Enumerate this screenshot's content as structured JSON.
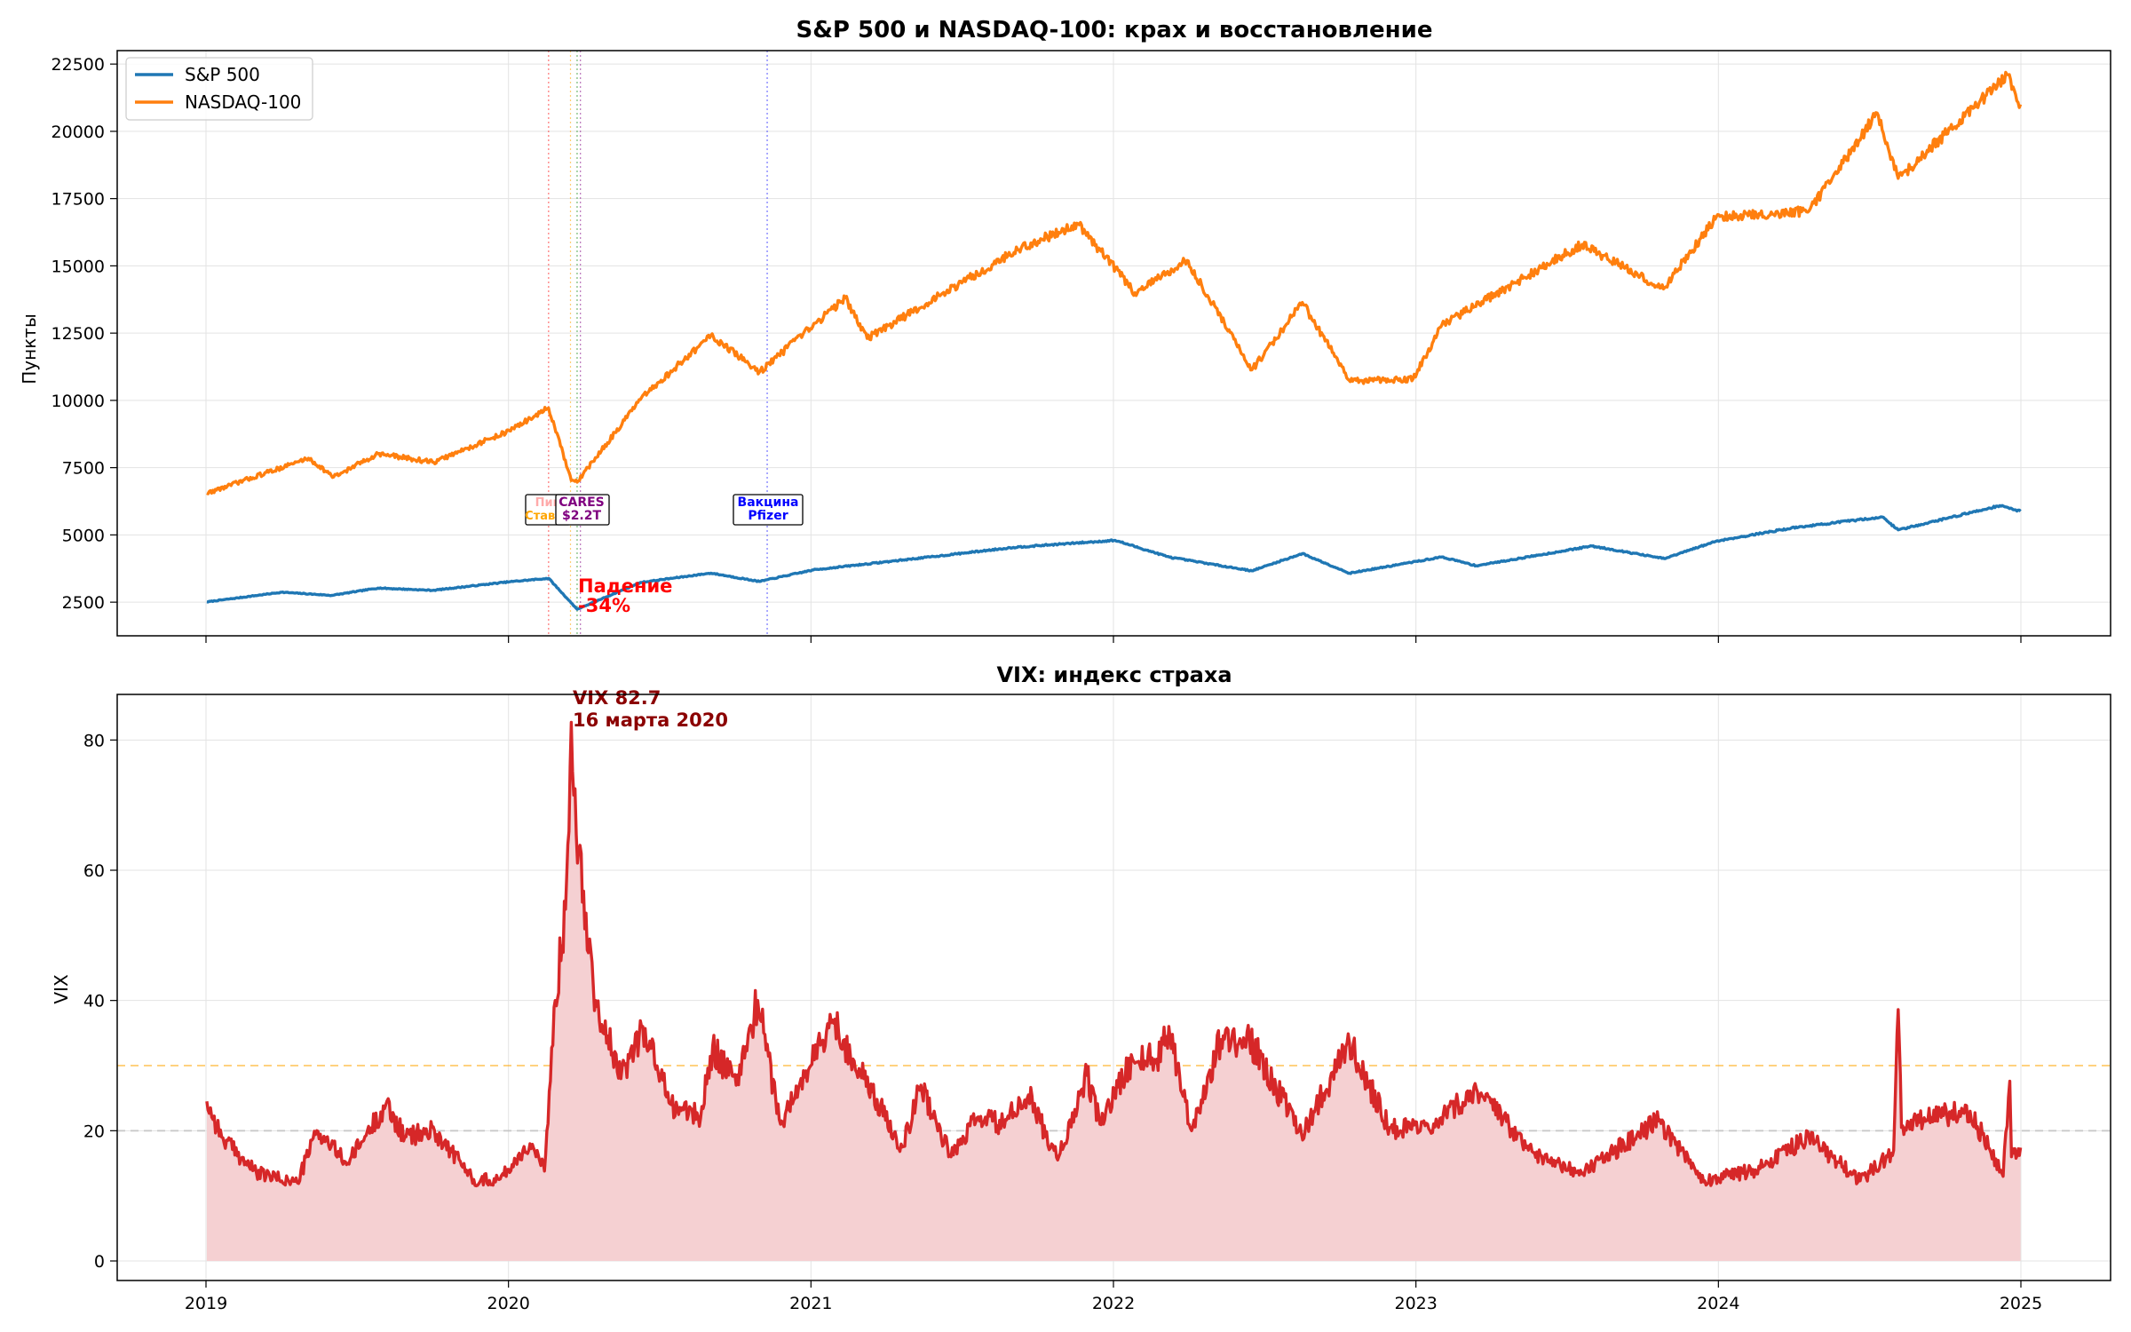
{
  "chart_data": [
    {
      "type": "line",
      "title": "S&P 500 и NASDAQ-100: крах и восстановление",
      "xlabel": "",
      "ylabel": "Пункты",
      "ylim": [
        1250,
        23000
      ],
      "yticks": [
        2500,
        5000,
        7500,
        10000,
        12500,
        15000,
        17500,
        20000,
        22500
      ],
      "xticks": [
        "2019",
        "2020",
        "2021",
        "2022",
        "2023",
        "2024",
        "2025"
      ],
      "grid": true,
      "legend": "top-left",
      "series": [
        {
          "name": "S&P 500",
          "color": "#1f77b4",
          "x": [
            "2019-01-02",
            "2019-04-01",
            "2019-05-31",
            "2019-07-26",
            "2019-10-01",
            "2020-01-02",
            "2020-02-19",
            "2020-03-23",
            "2020-06-08",
            "2020-09-02",
            "2020-10-30",
            "2021-01-04",
            "2021-06-01",
            "2021-09-02",
            "2022-01-03",
            "2022-03-08",
            "2022-06-16",
            "2022-08-16",
            "2022-10-12",
            "2023-02-02",
            "2023-03-13",
            "2023-07-31",
            "2023-10-27",
            "2023-12-29",
            "2024-03-28",
            "2024-07-16",
            "2024-08-05",
            "2024-12-06",
            "2024-12-31"
          ],
          "values": [
            2510,
            2870,
            2752,
            3025,
            2940,
            3258,
            3386,
            2237,
            3232,
            3580,
            3270,
            3700,
            4210,
            4537,
            4797,
            4170,
            3667,
            4305,
            3577,
            4180,
            3855,
            4588,
            4117,
            4770,
            5254,
            5667,
            5186,
            6090,
            5882
          ]
        },
        {
          "name": "NASDAQ-100",
          "color": "#ff7f0e",
          "x": [
            "2019-01-02",
            "2019-05-03",
            "2019-06-03",
            "2019-07-26",
            "2019-10-02",
            "2020-01-02",
            "2020-02-19",
            "2020-03-16",
            "2020-03-23",
            "2020-06-08",
            "2020-09-02",
            "2020-10-30",
            "2021-02-12",
            "2021-03-08",
            "2021-09-07",
            "2021-11-19",
            "2022-01-27",
            "2022-03-29",
            "2022-06-16",
            "2022-08-16",
            "2022-10-13",
            "2022-12-28",
            "2023-02-02",
            "2023-07-19",
            "2023-10-26",
            "2023-12-29",
            "2024-04-19",
            "2024-07-10",
            "2024-08-05",
            "2024-12-16",
            "2024-12-31"
          ],
          "values": [
            6550,
            7850,
            7150,
            8020,
            7700,
            8870,
            9720,
            7020,
            6960,
            10030,
            12420,
            11050,
            13810,
            12300,
            15600,
            16570,
            14000,
            15200,
            11130,
            13640,
            10700,
            10800,
            12810,
            15800,
            14140,
            16830,
            17040,
            20680,
            18250,
            22100,
            21000
          ]
        }
      ],
      "annotations": [
        {
          "text": "Падение\n-34%",
          "color": "#ff0000"
        },
        {
          "text": "Пик",
          "color": "#ffaaaa"
        },
        {
          "text": "Ставка",
          "color": "#ffa500"
        },
        {
          "text": "CARES\n$2.2T",
          "color": "#800080"
        },
        {
          "text": "Вакцина\nPfizer",
          "color": "#0000ff"
        }
      ],
      "event_lines": [
        {
          "x": "2020-02-19",
          "color": "#ff0000"
        },
        {
          "x": "2020-03-15",
          "color": "#ffa500"
        },
        {
          "x": "2020-03-23",
          "color": "#008000"
        },
        {
          "x": "2020-03-27",
          "color": "#800080"
        },
        {
          "x": "2020-11-09",
          "color": "#0000ff"
        }
      ]
    },
    {
      "type": "area",
      "title": "VIX: индекс страха",
      "xlabel": "",
      "ylabel": "VIX",
      "ylim": [
        -3,
        87
      ],
      "yticks": [
        0,
        20,
        40,
        60,
        80
      ],
      "xticks": [
        "2019",
        "2020",
        "2021",
        "2022",
        "2023",
        "2024",
        "2025"
      ],
      "grid": true,
      "series": [
        {
          "name": "VIX",
          "color": "#d62728",
          "fill": "#f5d0d2",
          "x": [
            "2019-01-02",
            "2019-01-20",
            "2019-03-01",
            "2019-04-20",
            "2019-05-13",
            "2019-06-20",
            "2019-08-05",
            "2019-08-28",
            "2019-10-03",
            "2019-11-20",
            "2019-12-20",
            "2020-01-27",
            "2020-02-14",
            "2020-02-27",
            "2020-03-09",
            "2020-03-16",
            "2020-03-25",
            "2020-04-15",
            "2020-05-15",
            "2020-06-11",
            "2020-07-15",
            "2020-08-20",
            "2020-09-04",
            "2020-10-02",
            "2020-10-28",
            "2020-11-25",
            "2021-01-27",
            "2021-03-04",
            "2021-04-20",
            "2021-05-12",
            "2021-06-18",
            "2021-07-19",
            "2021-08-20",
            "2021-09-20",
            "2021-10-25",
            "2021-11-30",
            "2021-12-15",
            "2022-01-24",
            "2022-02-23",
            "2022-03-07",
            "2022-04-04",
            "2022-05-09",
            "2022-06-13",
            "2022-08-15",
            "2022-10-12",
            "2022-11-30",
            "2023-01-18",
            "2023-03-13",
            "2023-05-15",
            "2023-07-20",
            "2023-10-20",
            "2023-12-15",
            "2024-02-15",
            "2024-04-19",
            "2024-06-20",
            "2024-07-30",
            "2024-08-05",
            "2024-08-09",
            "2024-09-06",
            "2024-10-31",
            "2024-12-10",
            "2024-12-18",
            "2024-12-20",
            "2024-12-31"
          ],
          "values": [
            24.5,
            19,
            13.5,
            12,
            20,
            15,
            24,
            19,
            20,
            12.5,
            12.5,
            18,
            13.8,
            40,
            54,
            82.7,
            63,
            40,
            28,
            36,
            24,
            22,
            33,
            27,
            40,
            21,
            37,
            28,
            17.5,
            27,
            16,
            22,
            21,
            25.5,
            15.5,
            28.5,
            21,
            31,
            31,
            36,
            20,
            34,
            34,
            19.5,
            33.5,
            20.5,
            20,
            26.5,
            17,
            13.5,
            21.5,
            12.3,
            14,
            19,
            12.3,
            17,
            38.6,
            20.5,
            22,
            23,
            13,
            27.6,
            16,
            17.4
          ]
        }
      ],
      "reference_lines": [
        {
          "y": 20,
          "color": "#aaaaaa"
        },
        {
          "y": 30,
          "color": "#ffa500"
        }
      ],
      "annotations": [
        {
          "text": "VIX 82.7\n16 марта 2020",
          "color": "#8b0000"
        }
      ]
    }
  ]
}
